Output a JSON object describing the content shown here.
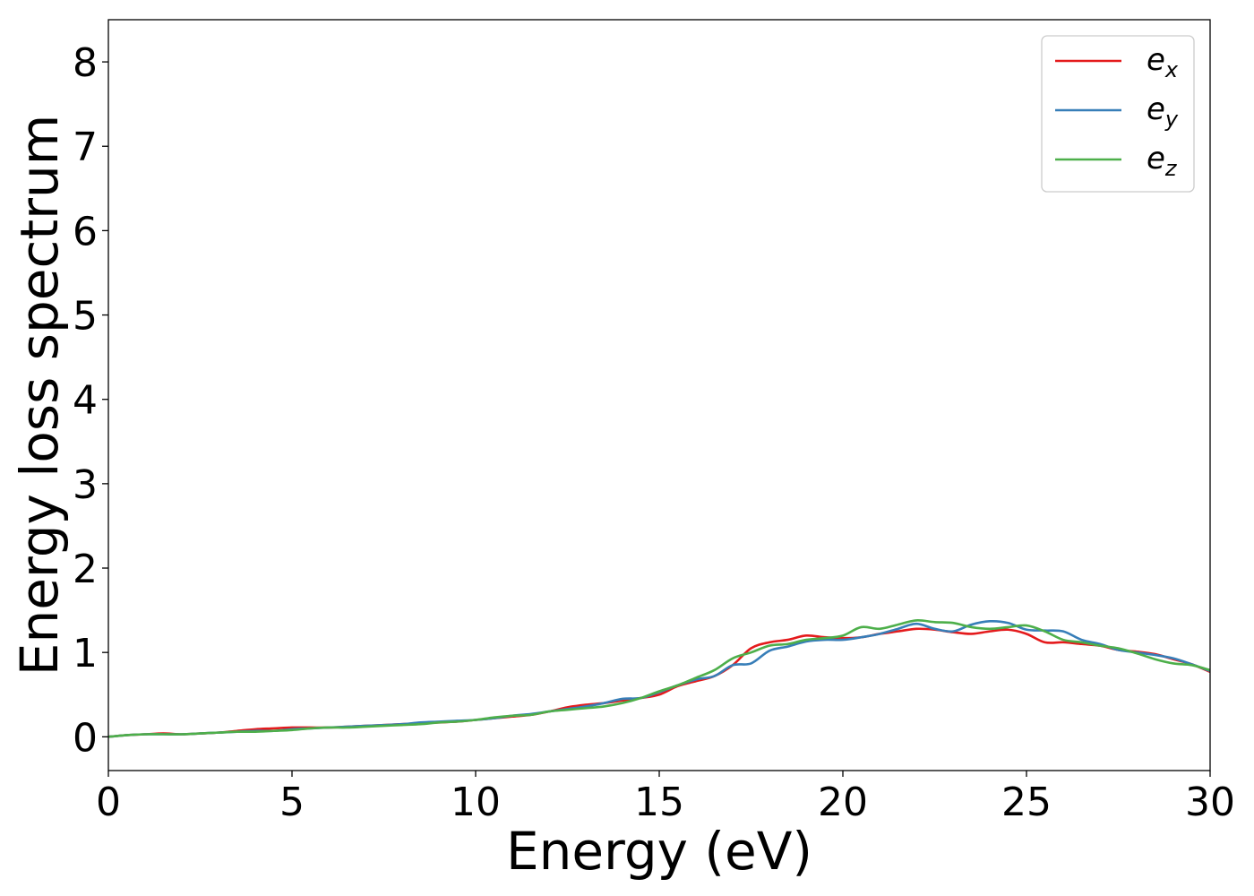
{
  "chart_data": {
    "type": "line",
    "xlabel": "Energy (eV)",
    "ylabel": "Energy loss spectrum",
    "xlim": [
      0,
      30
    ],
    "ylim": [
      -0.4,
      8.5
    ],
    "xticks": [
      0,
      5,
      10,
      15,
      20,
      25,
      30
    ],
    "yticks": [
      0,
      1,
      2,
      3,
      4,
      5,
      6,
      7,
      8
    ],
    "grid": false,
    "legend_position": "top-right",
    "series": [
      {
        "name": "e_x",
        "legend_base": "e",
        "legend_sub": "x",
        "color": "#e41a1c",
        "points": [
          [
            0,
            0
          ],
          [
            0.5,
            0.02
          ],
          [
            1,
            0.03
          ],
          [
            1.5,
            0.04
          ],
          [
            2,
            0.03
          ],
          [
            2.5,
            0.04
          ],
          [
            3,
            0.05
          ],
          [
            3.5,
            0.07
          ],
          [
            4,
            0.09
          ],
          [
            4.5,
            0.1
          ],
          [
            5,
            0.11
          ],
          [
            5.5,
            0.11
          ],
          [
            6,
            0.11
          ],
          [
            6.5,
            0.12
          ],
          [
            7,
            0.13
          ],
          [
            7.5,
            0.14
          ],
          [
            8,
            0.15
          ],
          [
            8.5,
            0.16
          ],
          [
            9,
            0.17
          ],
          [
            9.5,
            0.18
          ],
          [
            10,
            0.2
          ],
          [
            10.5,
            0.22
          ],
          [
            11,
            0.24
          ],
          [
            11.5,
            0.26
          ],
          [
            12,
            0.3
          ],
          [
            12.5,
            0.35
          ],
          [
            13,
            0.38
          ],
          [
            13.5,
            0.4
          ],
          [
            14,
            0.43
          ],
          [
            14.5,
            0.46
          ],
          [
            15,
            0.5
          ],
          [
            15.5,
            0.6
          ],
          [
            16,
            0.66
          ],
          [
            16.5,
            0.72
          ],
          [
            17,
            0.85
          ],
          [
            17.5,
            1.05
          ],
          [
            18,
            1.12
          ],
          [
            18.5,
            1.15
          ],
          [
            19,
            1.2
          ],
          [
            19.5,
            1.18
          ],
          [
            20,
            1.17
          ],
          [
            20.5,
            1.18
          ],
          [
            21,
            1.22
          ],
          [
            21.5,
            1.25
          ],
          [
            22,
            1.28
          ],
          [
            22.5,
            1.27
          ],
          [
            23,
            1.24
          ],
          [
            23.5,
            1.22
          ],
          [
            24,
            1.25
          ],
          [
            24.5,
            1.27
          ],
          [
            25,
            1.22
          ],
          [
            25.5,
            1.12
          ],
          [
            26,
            1.12
          ],
          [
            26.5,
            1.1
          ],
          [
            27,
            1.08
          ],
          [
            27.5,
            1.03
          ],
          [
            28,
            1.01
          ],
          [
            28.5,
            0.98
          ],
          [
            29,
            0.92
          ],
          [
            29.5,
            0.86
          ],
          [
            30,
            0.77
          ]
        ]
      },
      {
        "name": "e_y",
        "legend_base": "e",
        "legend_sub": "y",
        "color": "#377eb8",
        "points": [
          [
            0,
            0
          ],
          [
            0.5,
            0.02
          ],
          [
            1,
            0.03
          ],
          [
            1.5,
            0.03
          ],
          [
            2,
            0.03
          ],
          [
            2.5,
            0.04
          ],
          [
            3,
            0.05
          ],
          [
            3.5,
            0.06
          ],
          [
            4,
            0.07
          ],
          [
            4.5,
            0.07
          ],
          [
            5,
            0.09
          ],
          [
            5.5,
            0.1
          ],
          [
            6,
            0.11
          ],
          [
            6.5,
            0.12
          ],
          [
            7,
            0.13
          ],
          [
            7.5,
            0.14
          ],
          [
            8,
            0.15
          ],
          [
            8.5,
            0.17
          ],
          [
            9,
            0.18
          ],
          [
            9.5,
            0.19
          ],
          [
            10,
            0.2
          ],
          [
            10.5,
            0.22
          ],
          [
            11,
            0.25
          ],
          [
            11.5,
            0.27
          ],
          [
            12,
            0.3
          ],
          [
            12.5,
            0.33
          ],
          [
            13,
            0.36
          ],
          [
            13.5,
            0.4
          ],
          [
            14,
            0.45
          ],
          [
            14.5,
            0.46
          ],
          [
            15,
            0.53
          ],
          [
            15.5,
            0.61
          ],
          [
            16,
            0.68
          ],
          [
            16.5,
            0.72
          ],
          [
            17,
            0.85
          ],
          [
            17.5,
            0.87
          ],
          [
            18,
            1.02
          ],
          [
            18.5,
            1.07
          ],
          [
            19,
            1.13
          ],
          [
            19.5,
            1.15
          ],
          [
            20,
            1.15
          ],
          [
            20.5,
            1.18
          ],
          [
            21,
            1.22
          ],
          [
            21.5,
            1.28
          ],
          [
            22,
            1.34
          ],
          [
            22.5,
            1.28
          ],
          [
            23,
            1.25
          ],
          [
            23.5,
            1.33
          ],
          [
            24,
            1.37
          ],
          [
            24.5,
            1.35
          ],
          [
            25,
            1.27
          ],
          [
            25.5,
            1.26
          ],
          [
            26,
            1.25
          ],
          [
            26.5,
            1.15
          ],
          [
            27,
            1.1
          ],
          [
            27.5,
            1.03
          ],
          [
            28,
            1.0
          ],
          [
            28.5,
            0.97
          ],
          [
            29,
            0.93
          ],
          [
            29.5,
            0.86
          ],
          [
            30,
            0.78
          ]
        ]
      },
      {
        "name": "e_z",
        "legend_base": "e",
        "legend_sub": "z",
        "color": "#4daf4a",
        "points": [
          [
            0,
            0
          ],
          [
            0.5,
            0.02
          ],
          [
            1,
            0.03
          ],
          [
            1.5,
            0.03
          ],
          [
            2,
            0.03
          ],
          [
            2.5,
            0.04
          ],
          [
            3,
            0.05
          ],
          [
            3.5,
            0.06
          ],
          [
            4,
            0.06
          ],
          [
            4.5,
            0.07
          ],
          [
            5,
            0.08
          ],
          [
            5.5,
            0.1
          ],
          [
            6,
            0.11
          ],
          [
            6.5,
            0.11
          ],
          [
            7,
            0.12
          ],
          [
            7.5,
            0.13
          ],
          [
            8,
            0.14
          ],
          [
            8.5,
            0.15
          ],
          [
            9,
            0.17
          ],
          [
            9.5,
            0.18
          ],
          [
            10,
            0.2
          ],
          [
            10.5,
            0.23
          ],
          [
            11,
            0.25
          ],
          [
            11.5,
            0.26
          ],
          [
            12,
            0.3
          ],
          [
            12.5,
            0.32
          ],
          [
            13,
            0.34
          ],
          [
            13.5,
            0.36
          ],
          [
            14,
            0.4
          ],
          [
            14.5,
            0.46
          ],
          [
            15,
            0.54
          ],
          [
            15.5,
            0.61
          ],
          [
            16,
            0.7
          ],
          [
            16.5,
            0.79
          ],
          [
            17,
            0.93
          ],
          [
            17.5,
            1.0
          ],
          [
            18,
            1.08
          ],
          [
            18.5,
            1.1
          ],
          [
            19,
            1.15
          ],
          [
            19.5,
            1.17
          ],
          [
            20,
            1.2
          ],
          [
            20.5,
            1.3
          ],
          [
            21,
            1.28
          ],
          [
            21.5,
            1.33
          ],
          [
            22,
            1.38
          ],
          [
            22.5,
            1.36
          ],
          [
            23,
            1.35
          ],
          [
            23.5,
            1.3
          ],
          [
            24,
            1.28
          ],
          [
            24.5,
            1.3
          ],
          [
            25,
            1.32
          ],
          [
            25.5,
            1.25
          ],
          [
            26,
            1.15
          ],
          [
            26.5,
            1.12
          ],
          [
            27,
            1.08
          ],
          [
            27.5,
            1.05
          ],
          [
            28,
            0.99
          ],
          [
            28.5,
            0.92
          ],
          [
            29,
            0.87
          ],
          [
            29.5,
            0.85
          ],
          [
            30,
            0.79
          ]
        ]
      }
    ]
  }
}
